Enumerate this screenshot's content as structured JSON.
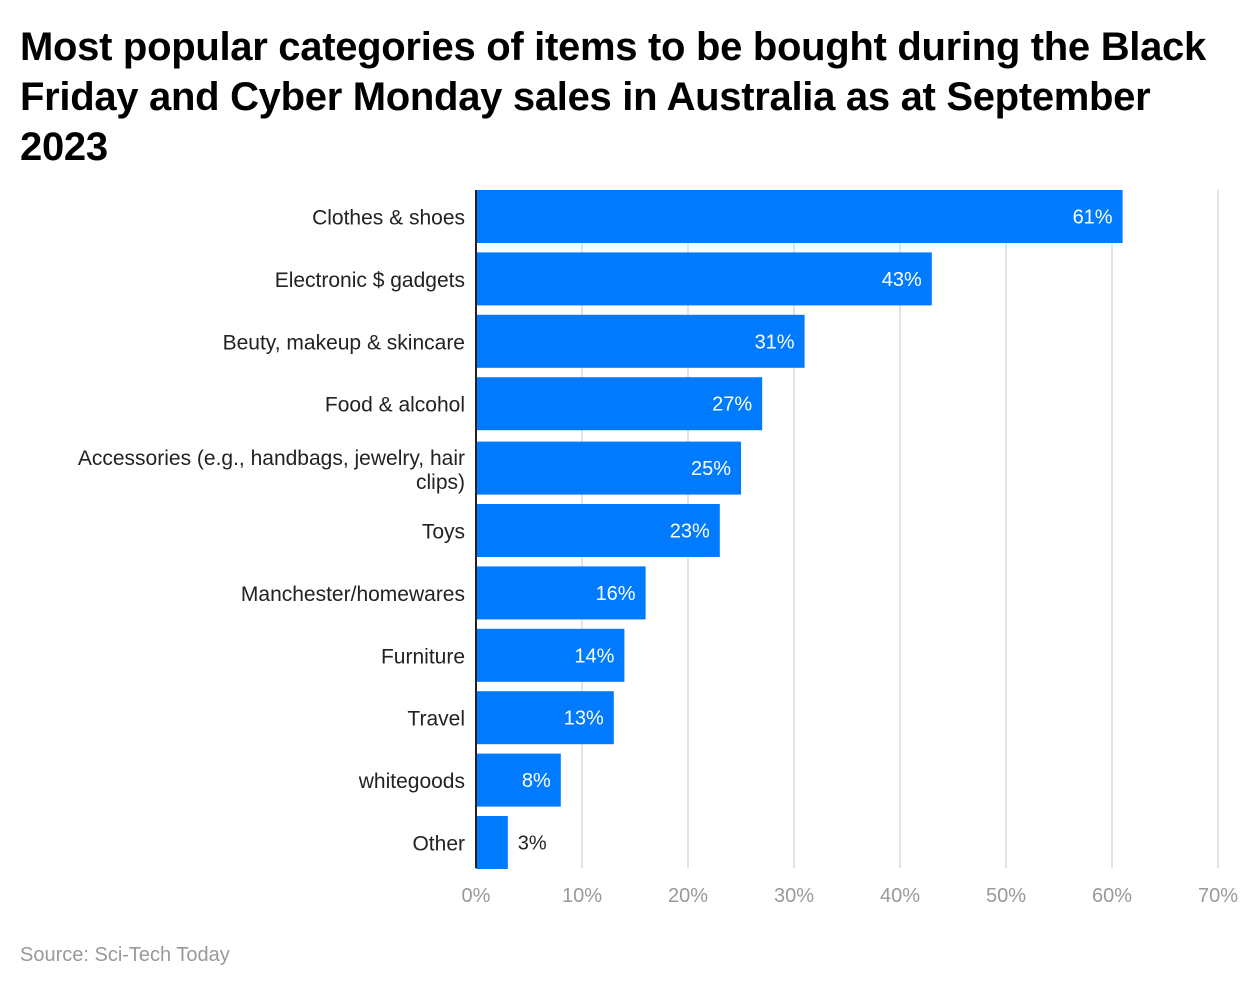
{
  "chart_data": {
    "type": "bar",
    "orientation": "horizontal",
    "title": "Most popular categories of items to be bought during the Black Friday and Cyber Monday sales in Australia as at September 2023",
    "categories": [
      "Clothes & shoes",
      "Electronic $ gadgets",
      "Beuty, makeup & skincare",
      "Food & alcohol",
      "Accessories (e.g., handbags, jewelry, hair clips)",
      "Toys",
      "Manchester/homewares",
      "Furniture",
      "Travel",
      "whitegoods",
      "Other"
    ],
    "values": [
      61,
      43,
      31,
      27,
      25,
      23,
      16,
      14,
      13,
      8,
      3
    ],
    "data_labels": [
      "61%",
      "43%",
      "31%",
      "27%",
      "25%",
      "23%",
      "16%",
      "14%",
      "13%",
      "8%",
      "3%"
    ],
    "xlim": [
      0,
      70
    ],
    "x_ticks": [
      "0%",
      "10%",
      "20%",
      "30%",
      "40%",
      "50%",
      "60%",
      "70%"
    ],
    "grid": true,
    "bar_color": "#007bff",
    "source": "Source: Sci-Tech Today"
  }
}
